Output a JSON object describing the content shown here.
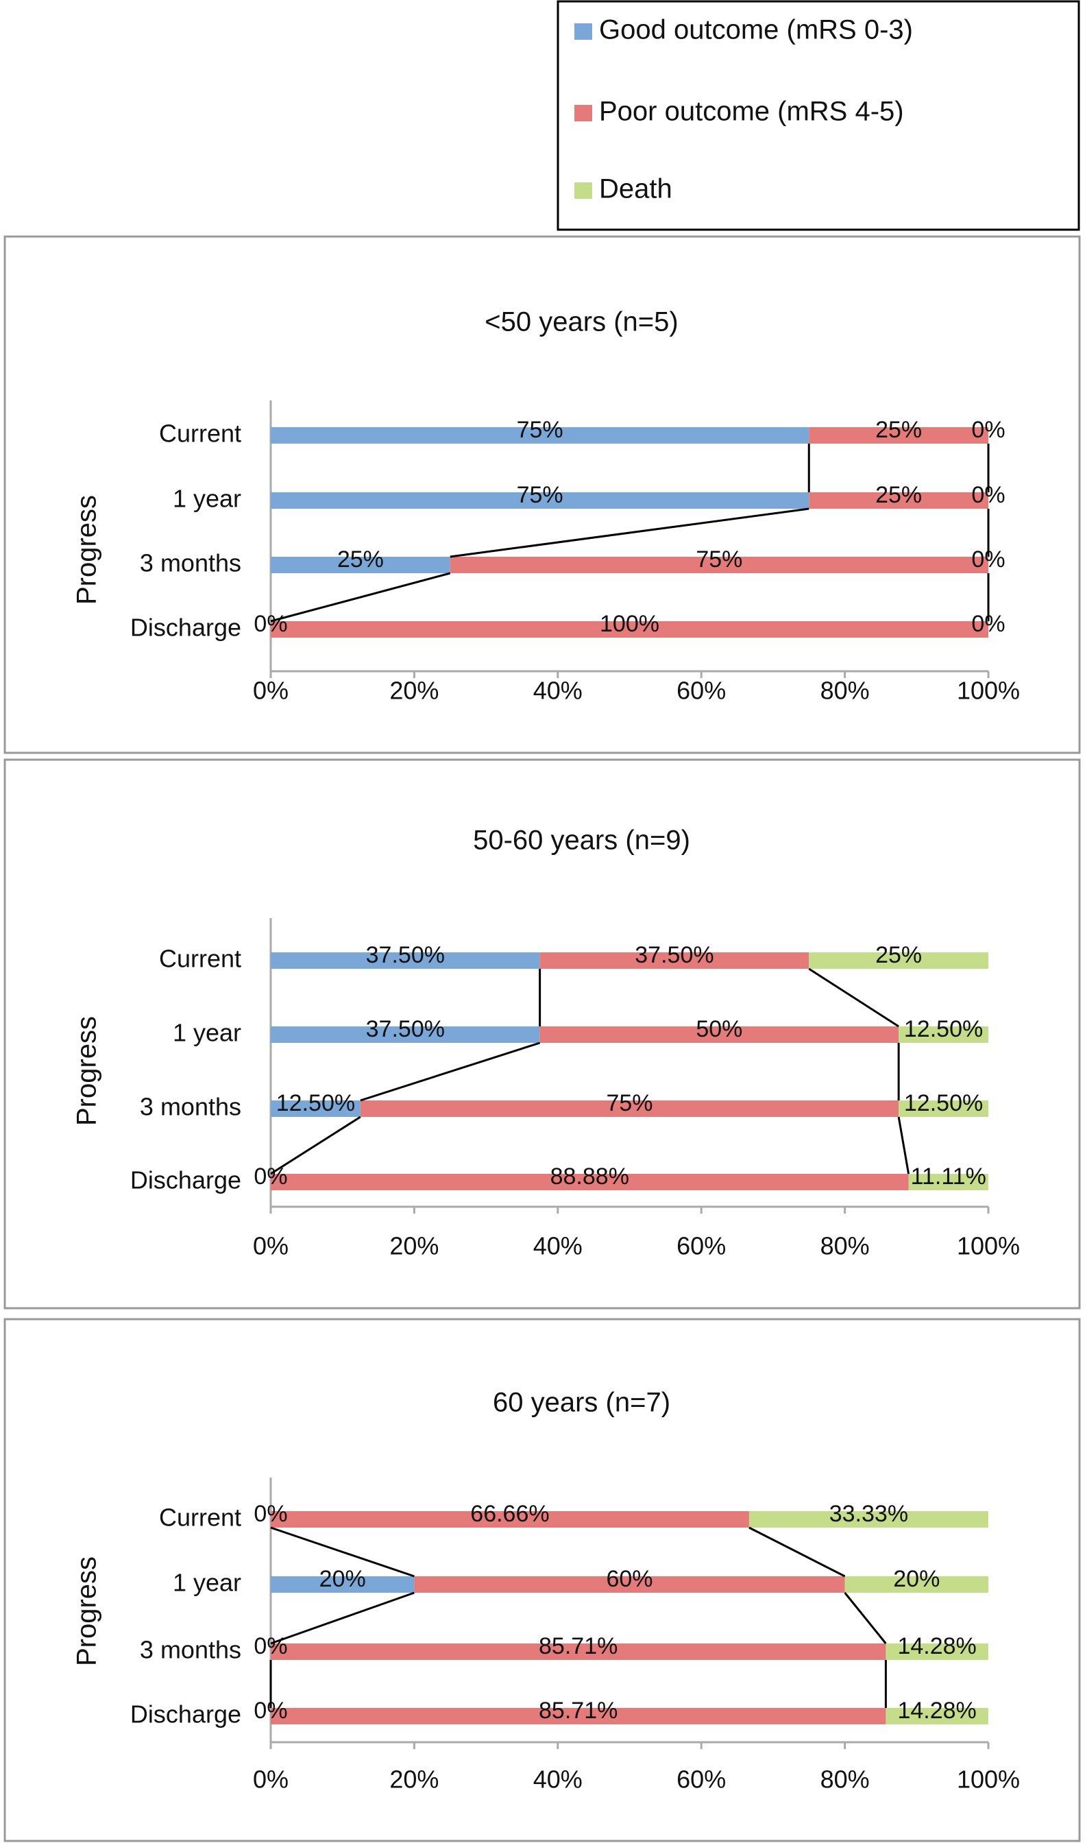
{
  "chart_data": [
    {
      "type": "bar",
      "title": "<50 years (n=5)",
      "y_label": "Progress",
      "categories": [
        "Current",
        "1 year",
        "3 months",
        "Discharge"
      ],
      "series": [
        {
          "name": "Good outcome (mRS 0-3)",
          "color": "#7aa7d8",
          "values": [
            75,
            75,
            25,
            0
          ],
          "value_labels": [
            "75%",
            "75%",
            "25%",
            "0%"
          ]
        },
        {
          "name": "Poor outcome (mRS 4-5)",
          "color": "#e47a7a",
          "values": [
            25,
            25,
            75,
            100
          ],
          "value_labels": [
            "25%",
            "25%",
            "75%",
            "100%"
          ]
        },
        {
          "name": "Death",
          "color": "#c5dd8a",
          "values": [
            0,
            0,
            0,
            0
          ],
          "value_labels": [
            "0%",
            "0%",
            "0%",
            "0%"
          ]
        }
      ],
      "xlim": [
        0,
        100
      ],
      "xticks": [
        {
          "value": 0,
          "label": "0%"
        },
        {
          "value": 20,
          "label": "20%"
        },
        {
          "value": 40,
          "label": "40%"
        },
        {
          "value": 60,
          "label": "60%"
        },
        {
          "value": 80,
          "label": "80%"
        },
        {
          "value": 100,
          "label": "100%"
        }
      ]
    },
    {
      "type": "bar",
      "title": "50-60 years (n=9)",
      "y_label": "Progress",
      "categories": [
        "Current",
        "1 year",
        "3 months",
        "Discharge"
      ],
      "series": [
        {
          "color": "#7aa7d8",
          "values": [
            37.5,
            37.5,
            12.5,
            0
          ],
          "value_labels": [
            "37.50%",
            "37.50%",
            "12.50%",
            "0%"
          ]
        },
        {
          "color": "#e47a7a",
          "values": [
            37.5,
            50,
            75,
            88.88
          ],
          "value_labels": [
            "37.50%",
            "50%",
            "75%",
            "88.88%"
          ]
        },
        {
          "color": "#c5dd8a",
          "values": [
            25,
            12.5,
            12.5,
            11.11
          ],
          "value_labels": [
            "25%",
            "12.50%",
            "12.50%",
            "11.11%"
          ]
        }
      ],
      "xlim": [
        0,
        100
      ],
      "xticks": [
        {
          "value": 0,
          "label": "0%"
        },
        {
          "value": 20,
          "label": "20%"
        },
        {
          "value": 40,
          "label": "40%"
        },
        {
          "value": 60,
          "label": "60%"
        },
        {
          "value": 80,
          "label": "80%"
        },
        {
          "value": 100,
          "label": "100%"
        }
      ]
    },
    {
      "type": "bar",
      "title": "60 years (n=7)",
      "y_label": "Progress",
      "categories": [
        "Current",
        "1 year",
        "3 months",
        "Discharge"
      ],
      "series": [
        {
          "color": "#7aa7d8",
          "values": [
            0,
            20,
            0,
            0
          ],
          "value_labels": [
            "0%",
            "20%",
            "0%",
            "0%"
          ]
        },
        {
          "color": "#e47a7a",
          "values": [
            66.66,
            60,
            85.71,
            85.71
          ],
          "value_labels": [
            "66.66%",
            "60%",
            "85.71%",
            "85.71%"
          ]
        },
        {
          "color": "#c5dd8a",
          "values": [
            33.33,
            20,
            14.28,
            14.28
          ],
          "value_labels": [
            "33.33%",
            "20%",
            "14.28%",
            "14.28%"
          ]
        }
      ],
      "xlim": [
        0,
        100
      ],
      "xticks": [
        {
          "value": 0,
          "label": "0%"
        },
        {
          "value": 20,
          "label": "20%"
        },
        {
          "value": 40,
          "label": "40%"
        },
        {
          "value": 60,
          "label": "60%"
        },
        {
          "value": 80,
          "label": "80%"
        },
        {
          "value": 100,
          "label": "100%"
        }
      ]
    }
  ]
}
